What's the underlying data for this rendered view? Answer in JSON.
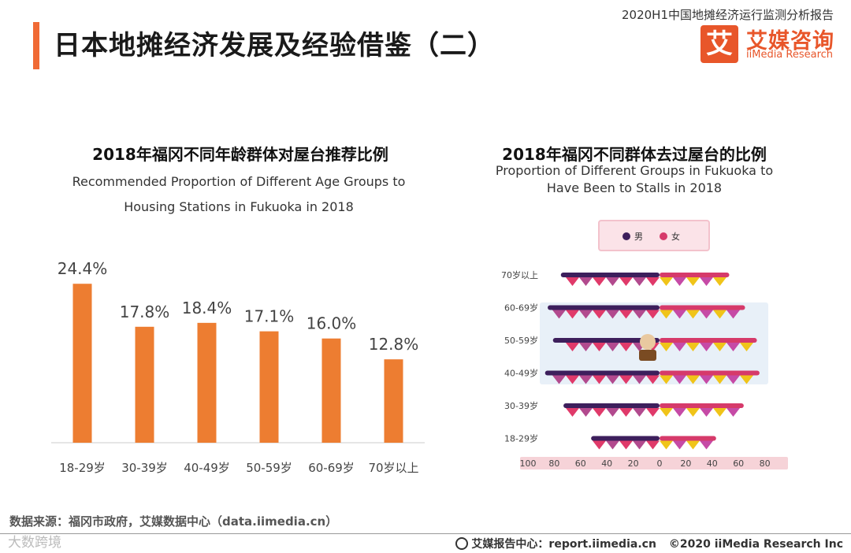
{
  "header": {
    "title": "日本地摊经济发展及经验借鉴（二）",
    "report_name": "2020H1中国地摊经济运行监测分析报告",
    "logo_mark": "艾",
    "logo_cn": "艾媒咨询",
    "logo_en": "iiMedia Research"
  },
  "colors": {
    "accent": "#f06a35",
    "bar": "#ed7d31",
    "male": "#3d1f5c",
    "female": "#d63a6a"
  },
  "chart_data": [
    {
      "type": "bar",
      "title": "2018年福冈不同年龄群体对屋台推荐比例",
      "subtitle_line1": "Recommended Proportion of Different Age Groups to",
      "subtitle_line2": "Housing Stations in Fukuoka in 2018",
      "categories": [
        "18-29岁",
        "30-39岁",
        "40-49岁",
        "50-59岁",
        "60-69岁",
        "70岁以上"
      ],
      "values": [
        24.4,
        17.8,
        18.4,
        17.1,
        16.0,
        12.8
      ],
      "value_labels": [
        "24.4%",
        "17.8%",
        "18.4%",
        "17.1%",
        "16.0%",
        "12.8%"
      ],
      "ylim": [
        0,
        26
      ]
    },
    {
      "type": "bar",
      "orientation": "horizontal-butterfly",
      "title": "2018年福冈不同群体去过屋台的比例",
      "subtitle_line1": "Proportion of Different Groups in Fukuoka to",
      "subtitle_line2": "Have Been to Stalls in 2018",
      "legend": [
        "男",
        "女"
      ],
      "categories": [
        "70岁以上",
        "60-69岁",
        "50-59岁",
        "40-49岁",
        "30-39岁",
        "18-29岁"
      ],
      "series": [
        {
          "name": "男",
          "values": [
            75,
            85,
            81,
            87,
            73,
            52
          ]
        },
        {
          "name": "女",
          "values": [
            53,
            65,
            74,
            76,
            64,
            43
          ]
        }
      ],
      "axis_ticks": [
        "100",
        "80",
        "60",
        "40",
        "20",
        "0",
        "20",
        "40",
        "60",
        "80"
      ],
      "xlim": [
        -100,
        85
      ]
    }
  ],
  "footer": {
    "source": "数据来源：福冈市政府，艾媒数据中心（data.iimedia.cn）",
    "watermark": "大数跨境",
    "site": "艾媒报告中心：report.iimedia.cn",
    "copyright": "©2020  iiMedia Research  Inc"
  }
}
